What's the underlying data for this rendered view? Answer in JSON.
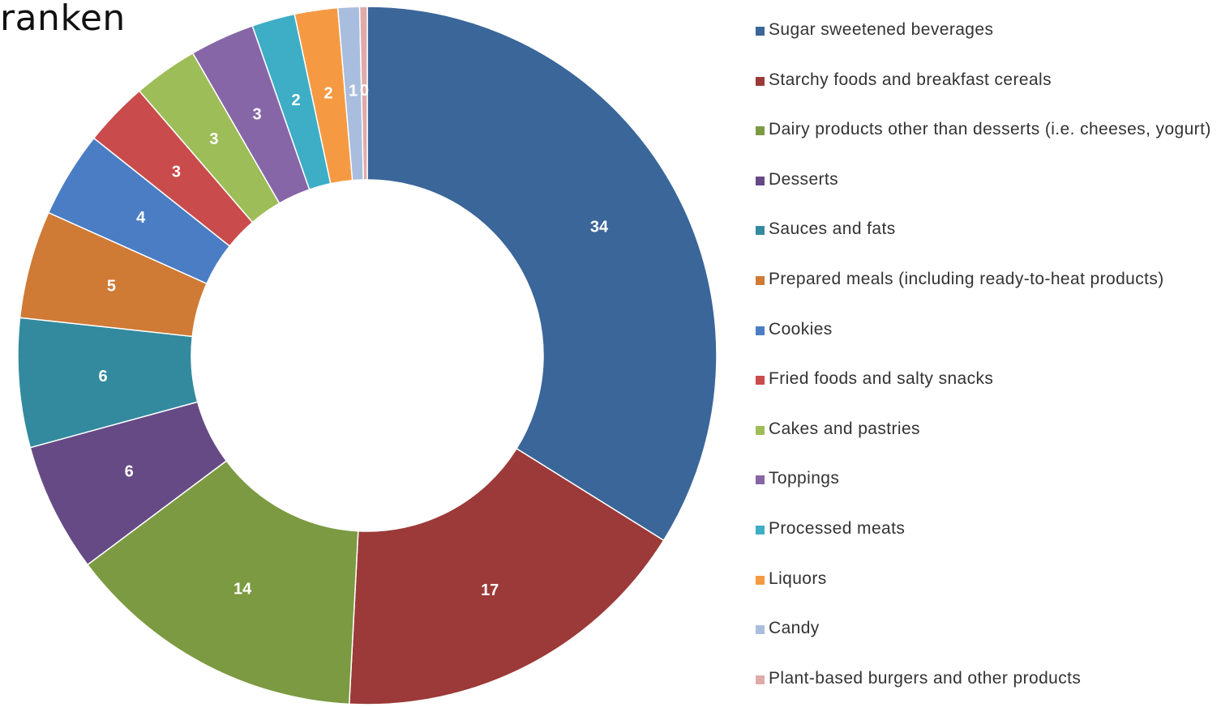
{
  "header": {
    "title": "ranken"
  },
  "chart_data": {
    "type": "pie",
    "variant": "donut",
    "title": "",
    "legend_position": "right",
    "categories": [
      "Sugar sweetened beverages",
      "Starchy foods and breakfast cereals",
      "Dairy products other than desserts (i.e. cheeses, yogurt)",
      "Desserts",
      "Sauces and fats",
      "Prepared meals (including ready-to-heat products)",
      "Cookies",
      "Fried foods and salty snacks",
      "Cakes and pastries",
      "Toppings",
      "Processed meats",
      "Liquors",
      "Candy",
      "Plant-based burgers and other products"
    ],
    "values": [
      34,
      17,
      14,
      6,
      6,
      5,
      4,
      3,
      3,
      3,
      2,
      2,
      1,
      0
    ],
    "labels": [
      "34",
      "17",
      "14",
      "6",
      "6",
      "5",
      "4",
      "3",
      "3",
      "3",
      "2",
      "2",
      "1",
      "0"
    ],
    "colors": [
      "#3A6699",
      "#9B3A38",
      "#7C9A42",
      "#664A85",
      "#338A9E",
      "#CF7A35",
      "#4A7DC4",
      "#C94B4B",
      "#9DBD58",
      "#8766A8",
      "#3EADC6",
      "#F59A42",
      "#A9BEDE",
      "#DFAAA9"
    ]
  }
}
